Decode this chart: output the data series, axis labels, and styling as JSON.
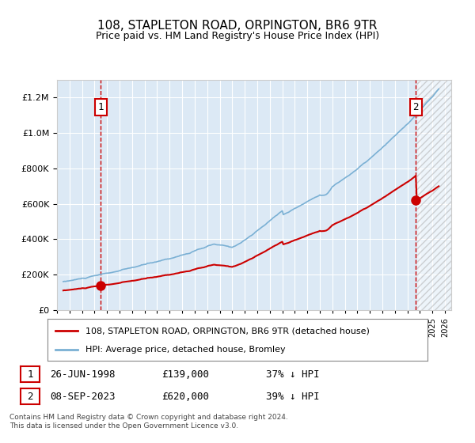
{
  "title": "108, STAPLETON ROAD, ORPINGTON, BR6 9TR",
  "subtitle": "Price paid vs. HM Land Registry's House Price Index (HPI)",
  "legend_line1": "108, STAPLETON ROAD, ORPINGTON, BR6 9TR (detached house)",
  "legend_line2": "HPI: Average price, detached house, Bromley",
  "annotation1_label": "1",
  "annotation1_date": "26-JUN-1998",
  "annotation1_price": "£139,000",
  "annotation1_hpi": "37% ↓ HPI",
  "annotation2_label": "2",
  "annotation2_date": "08-SEP-2023",
  "annotation2_price": "£620,000",
  "annotation2_hpi": "39% ↓ HPI",
  "footnote": "Contains HM Land Registry data © Crown copyright and database right 2024.\nThis data is licensed under the Open Government Licence v3.0.",
  "bg_color": "#dce9f5",
  "plot_bg_color": "#dce9f5",
  "hpi_color": "#7ab0d4",
  "price_color": "#cc0000",
  "marker_color": "#cc0000",
  "vline_color": "#cc0000",
  "ylim": [
    0,
    1300000
  ],
  "xlim_start": 1995.5,
  "xlim_end": 2026.5,
  "hatch_start": 2023.75
}
